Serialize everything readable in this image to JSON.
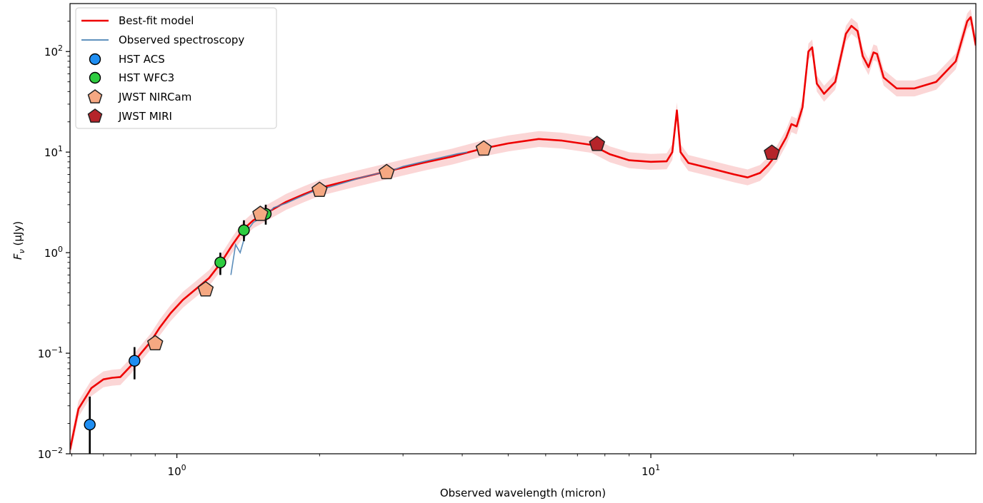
{
  "chart_data": {
    "type": "scatter",
    "xlabel": "Observed wavelength (micron)",
    "ylabel": "Fν (μJy)",
    "ylabel_base": "F",
    "ylabel_sub": "ν",
    "ylabel_unit": " (μJy)",
    "x_scale": "log",
    "y_scale": "log",
    "xlim": [
      0.595,
      48.5
    ],
    "ylim": [
      0.01,
      300
    ],
    "grid": false,
    "legend_position": "top-left",
    "x_ticks": [
      {
        "value": 1,
        "base": "10",
        "exp": "0"
      },
      {
        "value": 10,
        "base": "10",
        "exp": "1"
      }
    ],
    "y_ticks": [
      {
        "value": 0.01,
        "base": "10",
        "exp": "−2"
      },
      {
        "value": 0.1,
        "base": "10",
        "exp": "−1"
      },
      {
        "value": 1,
        "base": "10",
        "exp": "0"
      },
      {
        "value": 10,
        "base": "10",
        "exp": "1"
      },
      {
        "value": 100,
        "base": "10",
        "exp": "2"
      }
    ],
    "colors": {
      "model": "#ee0000",
      "model_band": "#f8b5b5",
      "spectroscopy": "#4a82b4",
      "acs": "#1f8ef2",
      "wfc3": "#2ecc40",
      "nircam": "#f5a882",
      "miri": "#b5242a"
    },
    "series": [
      {
        "name": "Best-fit model",
        "kind": "line",
        "points": [
          [
            0.595,
            0.011
          ],
          [
            0.62,
            0.028
          ],
          [
            0.66,
            0.045
          ],
          [
            0.7,
            0.055
          ],
          [
            0.73,
            0.057
          ],
          [
            0.76,
            0.058
          ],
          [
            0.8,
            0.075
          ],
          [
            0.84,
            0.1
          ],
          [
            0.88,
            0.13
          ],
          [
            0.92,
            0.18
          ],
          [
            0.97,
            0.25
          ],
          [
            1.03,
            0.34
          ],
          [
            1.1,
            0.44
          ],
          [
            1.17,
            0.56
          ],
          [
            1.24,
            0.8
          ],
          [
            1.31,
            1.2
          ],
          [
            1.38,
            1.7
          ],
          [
            1.45,
            2.1
          ],
          [
            1.55,
            2.5
          ],
          [
            1.7,
            3.2
          ],
          [
            1.85,
            3.8
          ],
          [
            2.0,
            4.4
          ],
          [
            2.3,
            5.2
          ],
          [
            2.8,
            6.5
          ],
          [
            3.3,
            7.8
          ],
          [
            3.8,
            9.0
          ],
          [
            4.4,
            10.8
          ],
          [
            5.0,
            12.2
          ],
          [
            5.8,
            13.5
          ],
          [
            6.5,
            13.0
          ],
          [
            7.5,
            11.8
          ],
          [
            8.2,
            9.5
          ],
          [
            9.0,
            8.3
          ],
          [
            10.0,
            8.0
          ],
          [
            10.8,
            8.1
          ],
          [
            11.1,
            10.0
          ],
          [
            11.35,
            26.0
          ],
          [
            11.55,
            10.0
          ],
          [
            12.0,
            7.8
          ],
          [
            13.5,
            6.8
          ],
          [
            15.0,
            6.0
          ],
          [
            16.0,
            5.6
          ],
          [
            17.0,
            6.2
          ],
          [
            17.7,
            7.5
          ],
          [
            18.5,
            9.8
          ],
          [
            19.3,
            14.0
          ],
          [
            19.8,
            19.0
          ],
          [
            20.3,
            18.0
          ],
          [
            20.9,
            28.0
          ],
          [
            21.5,
            100.0
          ],
          [
            21.9,
            110.0
          ],
          [
            22.4,
            48.0
          ],
          [
            23.2,
            38.0
          ],
          [
            24.5,
            50.0
          ],
          [
            25.8,
            150.0
          ],
          [
            26.5,
            180.0
          ],
          [
            27.3,
            160.0
          ],
          [
            28.0,
            90.0
          ],
          [
            28.8,
            70.0
          ],
          [
            29.5,
            98.0
          ],
          [
            30.0,
            95.0
          ],
          [
            31.0,
            55.0
          ],
          [
            33.0,
            43.0
          ],
          [
            36.0,
            43.0
          ],
          [
            40.0,
            50.0
          ],
          [
            44.0,
            80.0
          ],
          [
            46.5,
            200.0
          ],
          [
            47.3,
            220.0
          ],
          [
            48.5,
            115.0
          ]
        ]
      },
      {
        "name": "Observed spectroscopy",
        "kind": "line",
        "points": [
          [
            1.3,
            0.6
          ],
          [
            1.33,
            1.2
          ],
          [
            1.36,
            1.0
          ],
          [
            1.4,
            1.6
          ],
          [
            1.45,
            2.0
          ],
          [
            1.5,
            2.2
          ],
          [
            1.55,
            2.4
          ],
          [
            1.6,
            2.8
          ],
          [
            1.7,
            3.1
          ],
          [
            1.8,
            3.5
          ],
          [
            1.9,
            3.9
          ],
          [
            2.0,
            4.3
          ],
          [
            2.1,
            4.5
          ],
          [
            2.2,
            4.8
          ],
          [
            2.3,
            5.1
          ],
          [
            2.45,
            5.6
          ],
          [
            2.6,
            6.0
          ],
          [
            2.8,
            6.4
          ],
          [
            3.0,
            7.2
          ],
          [
            3.3,
            8.0
          ],
          [
            3.6,
            8.8
          ],
          [
            3.9,
            9.6
          ],
          [
            4.1,
            10.0
          ]
        ]
      },
      {
        "name": "HST ACS",
        "kind": "points",
        "points": [
          {
            "x": 0.655,
            "y": 0.0195,
            "ylo": 0.0095,
            "yhi": 0.037
          },
          {
            "x": 0.814,
            "y": 0.084,
            "ylo": 0.055,
            "yhi": 0.115
          }
        ]
      },
      {
        "name": "HST WFC3",
        "kind": "points",
        "points": [
          {
            "x": 1.235,
            "y": 0.8,
            "ylo": 0.6,
            "yhi": 1.0
          },
          {
            "x": 1.385,
            "y": 1.67,
            "ylo": 1.3,
            "yhi": 2.1
          },
          {
            "x": 1.54,
            "y": 2.43,
            "ylo": 1.9,
            "yhi": 3.0
          }
        ]
      },
      {
        "name": "JWST NIRCam",
        "kind": "points",
        "points": [
          {
            "x": 0.9,
            "y": 0.125
          },
          {
            "x": 1.15,
            "y": 0.43
          },
          {
            "x": 1.5,
            "y": 2.42
          },
          {
            "x": 2.0,
            "y": 4.2
          },
          {
            "x": 2.77,
            "y": 6.3
          },
          {
            "x": 4.44,
            "y": 10.8
          }
        ]
      },
      {
        "name": "JWST MIRI",
        "kind": "points",
        "points": [
          {
            "x": 7.7,
            "y": 12.0
          },
          {
            "x": 18.0,
            "y": 9.8
          }
        ]
      }
    ]
  }
}
